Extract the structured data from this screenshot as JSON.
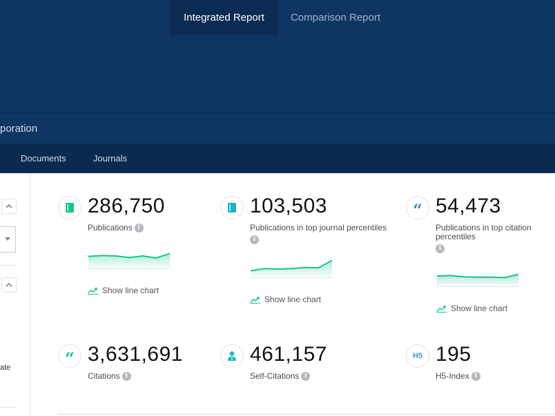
{
  "tabs": [
    {
      "label": "Integrated Report",
      "active": true
    },
    {
      "label": "Comparison Report",
      "active": false
    }
  ],
  "subheader": {
    "title": "poration"
  },
  "nav": {
    "items": [
      "Documents",
      "Journals"
    ]
  },
  "sidebar": {
    "partial_text": "ate"
  },
  "colors": {
    "brand_navy": "#0f3562",
    "accent_green": "#18c48a",
    "accent_blue": "#3d8fd8"
  },
  "metrics": [
    {
      "value": "286,750",
      "label": "Publications",
      "icon": "book-icon",
      "show_chart": "Show line chart",
      "spark": [
        0.58,
        0.62,
        0.6,
        0.52,
        0.6,
        0.5,
        0.72
      ]
    },
    {
      "value": "103,503",
      "label": "Publications in top journal percentiles",
      "icon": "book-icon",
      "show_chart": "Show line chart",
      "spark": [
        0.32,
        0.42,
        0.4,
        0.42,
        0.48,
        0.46,
        0.82
      ]
    },
    {
      "value": "54,473",
      "label": "Publications in top citation percentiles",
      "icon": "quote-icon",
      "show_chart": "Show line chart",
      "spark": [
        0.5,
        0.52,
        0.46,
        0.44,
        0.44,
        0.42,
        0.58
      ]
    },
    {
      "value": "3,631,691",
      "label": "Citations",
      "icon": "quote-icon"
    },
    {
      "value": "461,157",
      "label": "Self-Citations",
      "icon": "person-icon"
    },
    {
      "value": "195",
      "label": "H5-Index",
      "icon": "h5-icon",
      "icon_text": "H5"
    }
  ]
}
